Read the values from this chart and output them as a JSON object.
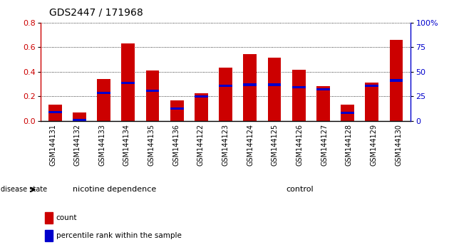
{
  "title": "GDS2447 / 171968",
  "samples": [
    "GSM144131",
    "GSM144132",
    "GSM144133",
    "GSM144134",
    "GSM144135",
    "GSM144136",
    "GSM144122",
    "GSM144123",
    "GSM144124",
    "GSM144125",
    "GSM144126",
    "GSM144127",
    "GSM144128",
    "GSM144129",
    "GSM144130"
  ],
  "count_values": [
    0.135,
    0.068,
    0.34,
    0.63,
    0.41,
    0.165,
    0.225,
    0.435,
    0.545,
    0.515,
    0.415,
    0.285,
    0.135,
    0.315,
    0.66
  ],
  "percentile_values": [
    0.07,
    0.01,
    0.23,
    0.31,
    0.245,
    0.1,
    0.2,
    0.285,
    0.295,
    0.295,
    0.275,
    0.255,
    0.065,
    0.285,
    0.33
  ],
  "ylim_left": [
    0,
    0.8
  ],
  "ylim_right": [
    0,
    100
  ],
  "yticks_left": [
    0,
    0.2,
    0.4,
    0.6,
    0.8
  ],
  "yticks_right": [
    0,
    25,
    50,
    75,
    100
  ],
  "ytick_labels_right": [
    "0",
    "25",
    "50",
    "75",
    "100%"
  ],
  "group1_label": "nicotine dependence",
  "group2_label": "control",
  "group1_count": 6,
  "group2_count": 9,
  "disease_state_label": "disease state",
  "legend_count_label": "count",
  "legend_percentile_label": "percentile rank within the sample",
  "bar_color_red": "#cc0000",
  "bar_color_blue": "#0000cc",
  "group1_color": "#99ee99",
  "group2_color": "#55dd55",
  "tick_bg_color": "#cccccc",
  "bar_width": 0.55,
  "title_fontsize": 10,
  "tick_label_fontsize": 6,
  "axis_color_left": "#cc0000",
  "axis_color_right": "#0000cc",
  "grid_color": "#000000",
  "bg_color": "#ffffff",
  "group_label_fontsize": 8,
  "legend_fontsize": 7.5
}
